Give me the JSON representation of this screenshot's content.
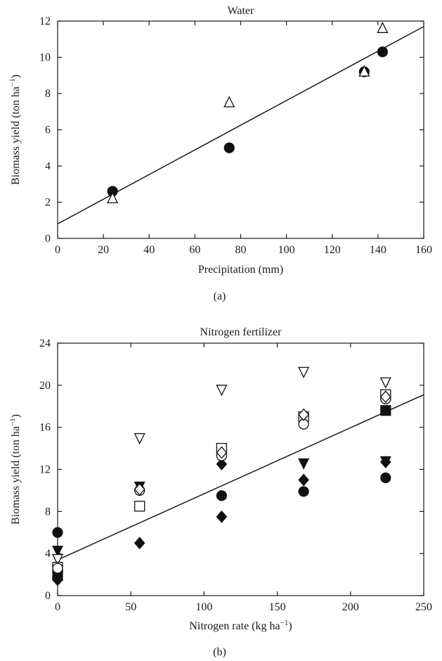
{
  "chart_data": [
    {
      "type": "scatter",
      "panel_label": "(a)",
      "title": "Water",
      "xlabel": "Precipitation (mm)",
      "ylabel": "Biomass yield (ton ha",
      "ylabel_sup": "−1",
      "ylabel_close": ")",
      "xlim": [
        0,
        160
      ],
      "ylim": [
        0,
        12
      ],
      "xticks": [
        0,
        20,
        40,
        60,
        80,
        100,
        120,
        140,
        160
      ],
      "yticks": [
        0,
        2,
        4,
        6,
        8,
        10,
        12
      ],
      "grid": false,
      "fit_line": {
        "x": [
          0,
          160
        ],
        "y": [
          0.8,
          11.7
        ]
      },
      "series": [
        {
          "marker": "circle-filled",
          "points": [
            [
              24,
              2.6
            ],
            [
              75,
              5.0
            ],
            [
              134,
              9.2
            ],
            [
              142,
              10.3
            ]
          ]
        },
        {
          "marker": "triangle-up-open",
          "points": [
            [
              24,
              2.2
            ],
            [
              75,
              7.5
            ],
            [
              134,
              9.2
            ],
            [
              142,
              11.6
            ]
          ]
        }
      ]
    },
    {
      "type": "scatter",
      "panel_label": "(b)",
      "title": "Nitrogen fertilizer",
      "xlabel": "Nitrogen rate (kg ha",
      "xlabel_sup": "−1",
      "xlabel_close": ")",
      "ylabel": "Biomass yield (ton ha",
      "ylabel_sup": "−1",
      "ylabel_close": ")",
      "xlim": [
        0,
        250
      ],
      "ylim": [
        0,
        24
      ],
      "xticks": [
        0,
        50,
        100,
        150,
        200,
        250
      ],
      "yticks": [
        0,
        4,
        8,
        12,
        16,
        20,
        24
      ],
      "grid": false,
      "fit_line": {
        "x": [
          0,
          250
        ],
        "y": [
          3.4,
          19.1
        ]
      },
      "series": [
        {
          "marker": "circle-filled",
          "points": [
            [
              0,
              6.0
            ],
            [
              112,
              9.5
            ],
            [
              168,
              9.9
            ],
            [
              224,
              11.2
            ]
          ]
        },
        {
          "marker": "diamond-filled",
          "points": [
            [
              0,
              1.5
            ],
            [
              56,
              5.0
            ],
            [
              112,
              7.5
            ],
            [
              112,
              12.5
            ],
            [
              168,
              11.0
            ],
            [
              224,
              12.7
            ]
          ]
        },
        {
          "marker": "triangle-down-filled",
          "points": [
            [
              0,
              4.3
            ],
            [
              56,
              10.4
            ],
            [
              168,
              12.6
            ],
            [
              224,
              12.8
            ]
          ]
        },
        {
          "marker": "square-filled",
          "points": [
            [
              0,
              1.9
            ],
            [
              224,
              17.6
            ]
          ]
        },
        {
          "marker": "triangle-down-open",
          "points": [
            [
              0,
              3.5
            ],
            [
              56,
              15.0
            ],
            [
              112,
              19.6
            ],
            [
              168,
              21.3
            ],
            [
              224,
              20.3
            ]
          ]
        },
        {
          "marker": "square-open",
          "points": [
            [
              0,
              2.7
            ],
            [
              56,
              8.5
            ],
            [
              112,
              14.0
            ],
            [
              168,
              17.0
            ],
            [
              224,
              19.1
            ]
          ]
        },
        {
          "marker": "circle-open",
          "points": [
            [
              0,
              2.6
            ],
            [
              56,
              10.0
            ],
            [
              112,
              13.3
            ],
            [
              168,
              16.3
            ],
            [
              224,
              18.7
            ]
          ]
        },
        {
          "marker": "diamond-open",
          "points": [
            [
              56,
              10.1
            ],
            [
              112,
              13.6
            ],
            [
              168,
              17.2
            ],
            [
              224,
              18.9
            ]
          ]
        }
      ]
    }
  ]
}
